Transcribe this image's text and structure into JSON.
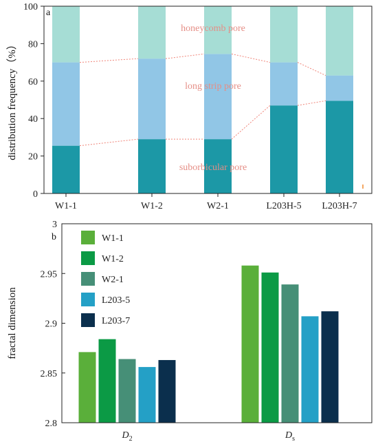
{
  "chart_data": [
    {
      "panel": "a",
      "type": "bar",
      "stacked": true,
      "categories": [
        "W1-1",
        "W1-2",
        "W2-1",
        "L203H-5",
        "L203H-7"
      ],
      "ylabel": "distribution frequency（%）",
      "ylim": [
        0,
        100
      ],
      "yticks": [
        0,
        20,
        40,
        60,
        80,
        100
      ],
      "series": [
        {
          "name": "suborbicular pore",
          "color": "#1c98a6",
          "values": [
            25.5,
            29,
            29,
            47,
            49.5
          ]
        },
        {
          "name": "long strip pore",
          "color": "#91c6e6",
          "values": [
            44.5,
            43,
            45.5,
            23,
            13.5
          ]
        },
        {
          "name": "honeycomb pore",
          "color": "#a6ddd5",
          "values": [
            30,
            28,
            25.5,
            30,
            37
          ]
        }
      ],
      "connector_color": "#f08478"
    },
    {
      "panel": "b",
      "type": "bar",
      "categories": [
        "D2",
        "Ds"
      ],
      "category_labels": [
        {
          "main": "D",
          "sub": "2"
        },
        {
          "main": "D",
          "sub": "s"
        }
      ],
      "ylabel": "fractal dimension",
      "ylim": [
        2.8,
        3.0
      ],
      "yticks": [
        "2.8",
        "2.85",
        "2.9",
        "2.95",
        "3"
      ],
      "legend": "top-left",
      "series": [
        {
          "name": "W1-1",
          "color": "#5aaf3a",
          "values": [
            2.871,
            2.958
          ]
        },
        {
          "name": "W1-2",
          "color": "#0b9a45",
          "values": [
            2.884,
            2.951
          ]
        },
        {
          "name": "W2-1",
          "color": "#468f77",
          "values": [
            2.864,
            2.939
          ]
        },
        {
          "name": "L203-5",
          "color": "#24a0c6",
          "values": [
            2.856,
            2.907
          ]
        },
        {
          "name": "L203-7",
          "color": "#0b2f4d",
          "values": [
            2.863,
            2.912
          ]
        }
      ]
    }
  ]
}
